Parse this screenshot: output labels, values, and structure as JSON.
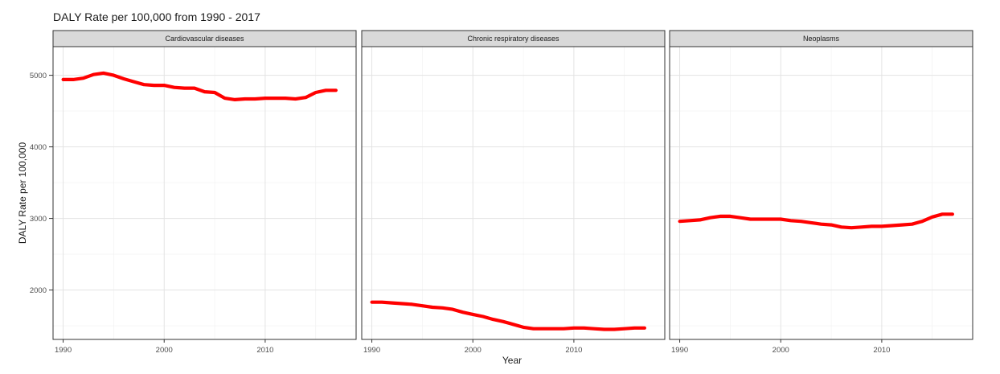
{
  "chart_data": {
    "type": "line",
    "title": "DALY Rate per 100,000 from 1990 - 2017",
    "xlabel": "Year",
    "ylabel": "DALY Rate per 100,000",
    "xlim": [
      1989,
      2019
    ],
    "ylim": [
      1310,
      5400
    ],
    "x_ticks": [
      1990,
      2000,
      2010
    ],
    "y_ticks": [
      2000,
      3000,
      4000,
      5000
    ],
    "grid": true,
    "line_color": "#ff0000",
    "panels": [
      {
        "name": "Cardiovascular diseases",
        "x": [
          1990,
          1991,
          1992,
          1993,
          1994,
          1995,
          1996,
          1997,
          1998,
          1999,
          2000,
          2001,
          2002,
          2003,
          2004,
          2005,
          2006,
          2007,
          2008,
          2009,
          2010,
          2011,
          2012,
          2013,
          2014,
          2015,
          2016,
          2017
        ],
        "values": [
          4940,
          4940,
          4960,
          5010,
          5030,
          5000,
          4950,
          4910,
          4870,
          4860,
          4860,
          4830,
          4820,
          4820,
          4770,
          4760,
          4680,
          4660,
          4670,
          4670,
          4680,
          4680,
          4680,
          4670,
          4690,
          4760,
          4790,
          4790
        ]
      },
      {
        "name": "Chronic respiratory diseases",
        "x": [
          1990,
          1991,
          1992,
          1993,
          1994,
          1995,
          1996,
          1997,
          1998,
          1999,
          2000,
          2001,
          2002,
          2003,
          2004,
          2005,
          2006,
          2007,
          2008,
          2009,
          2010,
          2011,
          2012,
          2013,
          2014,
          2015,
          2016,
          2017
        ],
        "values": [
          1830,
          1830,
          1820,
          1810,
          1800,
          1780,
          1760,
          1750,
          1730,
          1690,
          1660,
          1630,
          1590,
          1560,
          1520,
          1480,
          1460,
          1460,
          1460,
          1460,
          1470,
          1470,
          1460,
          1450,
          1450,
          1460,
          1470,
          1470
        ]
      },
      {
        "name": "Neoplasms",
        "x": [
          1990,
          1991,
          1992,
          1993,
          1994,
          1995,
          1996,
          1997,
          1998,
          1999,
          2000,
          2001,
          2002,
          2003,
          2004,
          2005,
          2006,
          2007,
          2008,
          2009,
          2010,
          2011,
          2012,
          2013,
          2014,
          2015,
          2016,
          2017
        ],
        "values": [
          2960,
          2970,
          2980,
          3010,
          3030,
          3030,
          3010,
          2990,
          2990,
          2990,
          2990,
          2970,
          2960,
          2940,
          2920,
          2910,
          2880,
          2870,
          2880,
          2890,
          2890,
          2900,
          2910,
          2920,
          2960,
          3020,
          3060,
          3060
        ]
      }
    ]
  }
}
